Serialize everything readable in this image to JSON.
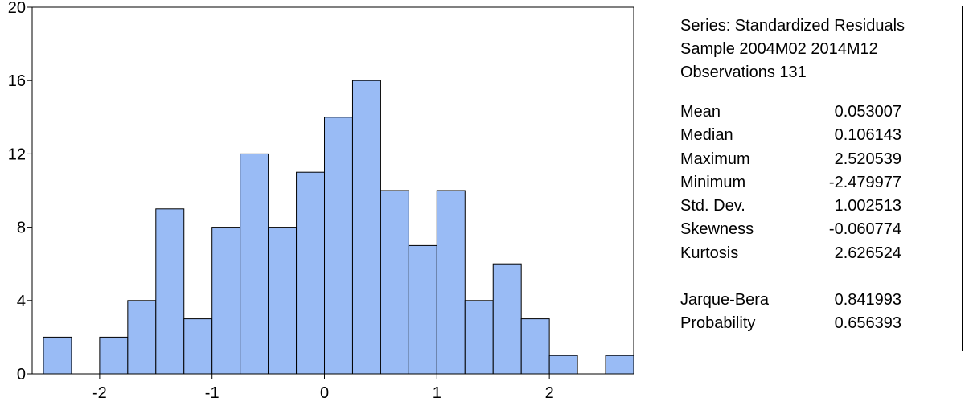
{
  "chart_data": {
    "type": "bar",
    "title": "",
    "xlabel": "",
    "ylabel": "",
    "bin_width": 0.25,
    "bins": [
      {
        "from": -2.5,
        "to": -2.25,
        "count": 2
      },
      {
        "from": -2.25,
        "to": -2.0,
        "count": 0
      },
      {
        "from": -2.0,
        "to": -1.75,
        "count": 2
      },
      {
        "from": -1.75,
        "to": -1.5,
        "count": 4
      },
      {
        "from": -1.5,
        "to": -1.25,
        "count": 9
      },
      {
        "from": -1.25,
        "to": -1.0,
        "count": 3
      },
      {
        "from": -1.0,
        "to": -0.75,
        "count": 8
      },
      {
        "from": -0.75,
        "to": -0.5,
        "count": 12
      },
      {
        "from": -0.5,
        "to": -0.25,
        "count": 8
      },
      {
        "from": -0.25,
        "to": 0.0,
        "count": 11
      },
      {
        "from": 0.0,
        "to": 0.25,
        "count": 14
      },
      {
        "from": 0.25,
        "to": 0.5,
        "count": 16
      },
      {
        "from": 0.5,
        "to": 0.75,
        "count": 10
      },
      {
        "from": 0.75,
        "to": 1.0,
        "count": 7
      },
      {
        "from": 1.0,
        "to": 1.25,
        "count": 10
      },
      {
        "from": 1.25,
        "to": 1.5,
        "count": 4
      },
      {
        "from": 1.5,
        "to": 1.75,
        "count": 6
      },
      {
        "from": 1.75,
        "to": 2.0,
        "count": 3
      },
      {
        "from": 2.0,
        "to": 2.25,
        "count": 1
      },
      {
        "from": 2.25,
        "to": 2.5,
        "count": 0
      },
      {
        "from": 2.5,
        "to": 2.75,
        "count": 1
      }
    ],
    "xlim": [
      -2.6,
      2.75
    ],
    "ylim": [
      0,
      20
    ],
    "x_ticks": [
      "-2",
      "-1",
      "0",
      "1",
      "2"
    ],
    "x_tick_values": [
      -2,
      -1,
      0,
      1,
      2
    ],
    "y_ticks": [
      "0",
      "4",
      "8",
      "12",
      "16",
      "20"
    ],
    "y_tick_values": [
      0,
      4,
      8,
      12,
      16,
      20
    ],
    "grid": false,
    "legend": "none",
    "bar_color": "#99BBF5",
    "bar_edge_color": "#000000"
  },
  "stats": {
    "series_line": "Series: Standardized Residuals",
    "sample_line": "Sample 2004M02 2014M12",
    "obs_line": "Observations 131",
    "rows": [
      {
        "name": "Mean",
        "value": "0.053007"
      },
      {
        "name": "Median",
        "value": "0.106143"
      },
      {
        "name": "Maximum",
        "value": "2.520539"
      },
      {
        "name": "Minimum",
        "value": "-2.479977"
      },
      {
        "name": "Std. Dev.",
        "value": "1.002513"
      },
      {
        "name": "Skewness",
        "value": "-0.060774"
      },
      {
        "name": "Kurtosis",
        "value": "2.626524"
      },
      {
        "name": "",
        "value": ""
      },
      {
        "name": "Jarque-Bera",
        "value": "0.841993"
      },
      {
        "name": "Probability",
        "value": "0.656393"
      }
    ]
  }
}
